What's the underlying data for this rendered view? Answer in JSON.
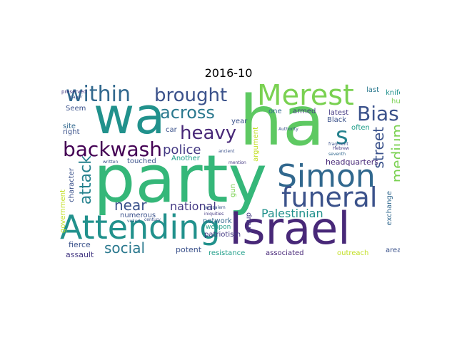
{
  "title": "2016-10",
  "words": {
    "wa": "wa",
    "ha": "ha",
    "party": "party",
    "israel": "Israel",
    "attending": "Attending",
    "simon": "Simon",
    "merest": "Merest",
    "funeral": "funeral",
    "within": "within",
    "brought": "brought",
    "backwash": "backwash",
    "across": "across",
    "heavy": "heavy",
    "bias": "Bias",
    "s": "s",
    "police": "police",
    "street": "street",
    "medium": "medium",
    "attack": "attack",
    "near": "near",
    "national": "national",
    "palestinian": "Palestinian",
    "social": "social",
    "headquarters": "headquarters",
    "fierce": "fierce",
    "assault": "assault",
    "potent": "potent",
    "resistance": "resistance",
    "associated": "associated",
    "outreach": "outreach",
    "area": "area",
    "exchange": "exchange",
    "knife": "knife",
    "last": "last",
    "human": "human",
    "latest": "latest",
    "often": "often",
    "black": "Black",
    "one": "one",
    "armed": "armed",
    "year": "year",
    "car": "car",
    "network": "network",
    "patriotism": "patriotism",
    "weapon": "weapon",
    "numerous": "numerous",
    "another": "Another",
    "touched": "touched",
    "character": "character",
    "government": "government",
    "gun": "gun",
    "group": "group",
    "argument": "argument",
    "seem": "Seem",
    "site": "site",
    "right": "right",
    "preserved": "preserved",
    "paper": "paper",
    "authority": "Authority",
    "fragment": "fragment",
    "hebrew": "Hebrew",
    "seventh": "seventh",
    "ancient": "ancient",
    "mention": "mention",
    "written": "written",
    "jerusalem": "Jerusalem",
    "iniquities": "iniquities",
    "veiled": "veiled",
    "century": "century",
    "e": "e"
  },
  "colors": {
    "title": "#000000",
    "lime": "#7ad151",
    "green": "#5ec962",
    "teal": "#21918c",
    "teal2": "#1f9e89",
    "blue": "#31688e",
    "navy": "#3b528b",
    "purple": "#440154",
    "violet": "#482878",
    "indigo": "#443983",
    "cyan": "#26828e",
    "sea": "#35b779",
    "yellow": "#bddf26",
    "gold": "#c2df23"
  }
}
